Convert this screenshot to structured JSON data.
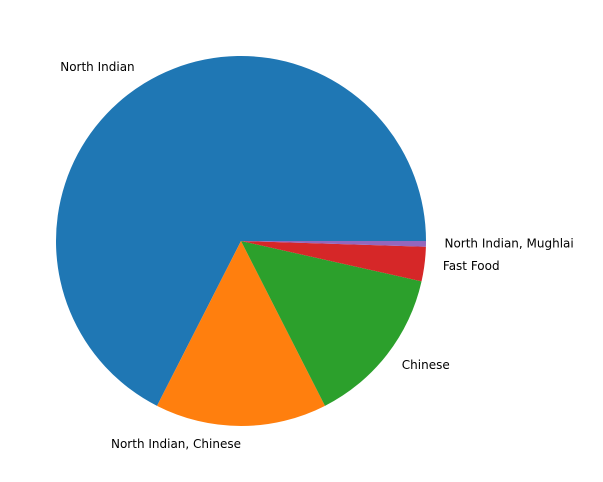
{
  "chart_data": {
    "type": "pie",
    "start_angle_deg": 0,
    "direction": "counterclockwise",
    "slices": [
      {
        "label": "North Indian",
        "value": 67.5,
        "color": "#1f77b4"
      },
      {
        "label": "North Indian, Chinese",
        "value": 15.0,
        "color": "#ff7f0e"
      },
      {
        "label": "Chinese",
        "value": 14.0,
        "color": "#2ca02c"
      },
      {
        "label": "Fast Food",
        "value": 3.0,
        "color": "#d62728"
      },
      {
        "label": "North Indian, Mughlai",
        "value": 0.5,
        "color": "#9467bd"
      }
    ]
  }
}
